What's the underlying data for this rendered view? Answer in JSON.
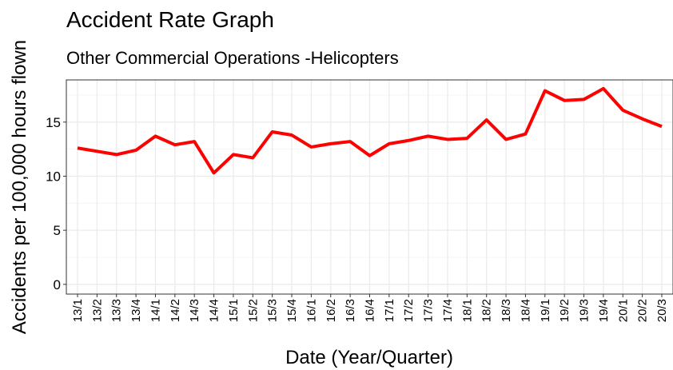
{
  "chart_data": {
    "type": "line",
    "title": "Accident Rate Graph",
    "subtitle": "Other Commercial Operations -Helicopters",
    "xlabel": "Date (Year/Quarter)",
    "ylabel": "Accidents per 100,000 hours flown",
    "categories": [
      "13/1",
      "13/2",
      "13/3",
      "13/4",
      "14/1",
      "14/2",
      "14/3",
      "14/4",
      "15/1",
      "15/2",
      "15/3",
      "15/4",
      "16/1",
      "16/2",
      "16/3",
      "16/4",
      "17/1",
      "17/2",
      "17/3",
      "17/4",
      "18/1",
      "18/2",
      "18/3",
      "18/4",
      "19/1",
      "19/2",
      "19/3",
      "19/4",
      "20/1",
      "20/2",
      "20/3"
    ],
    "series": [
      {
        "color": "#ff0000",
        "values": [
          12.6,
          12.3,
          12.0,
          12.4,
          13.7,
          12.9,
          13.2,
          10.3,
          12.0,
          11.7,
          14.1,
          13.8,
          12.7,
          13.0,
          13.2,
          11.9,
          13.0,
          13.3,
          13.7,
          13.4,
          13.5,
          15.2,
          13.4,
          13.9,
          17.9,
          17.0,
          17.1,
          18.1,
          16.1,
          15.3,
          14.6
        ]
      }
    ],
    "ylim": [
      -0.9,
      18.9
    ],
    "yticks": [
      0,
      5,
      10,
      15
    ],
    "minor_yticks": [
      2.5,
      7.5,
      12.5,
      17.5
    ],
    "grid": true
  }
}
